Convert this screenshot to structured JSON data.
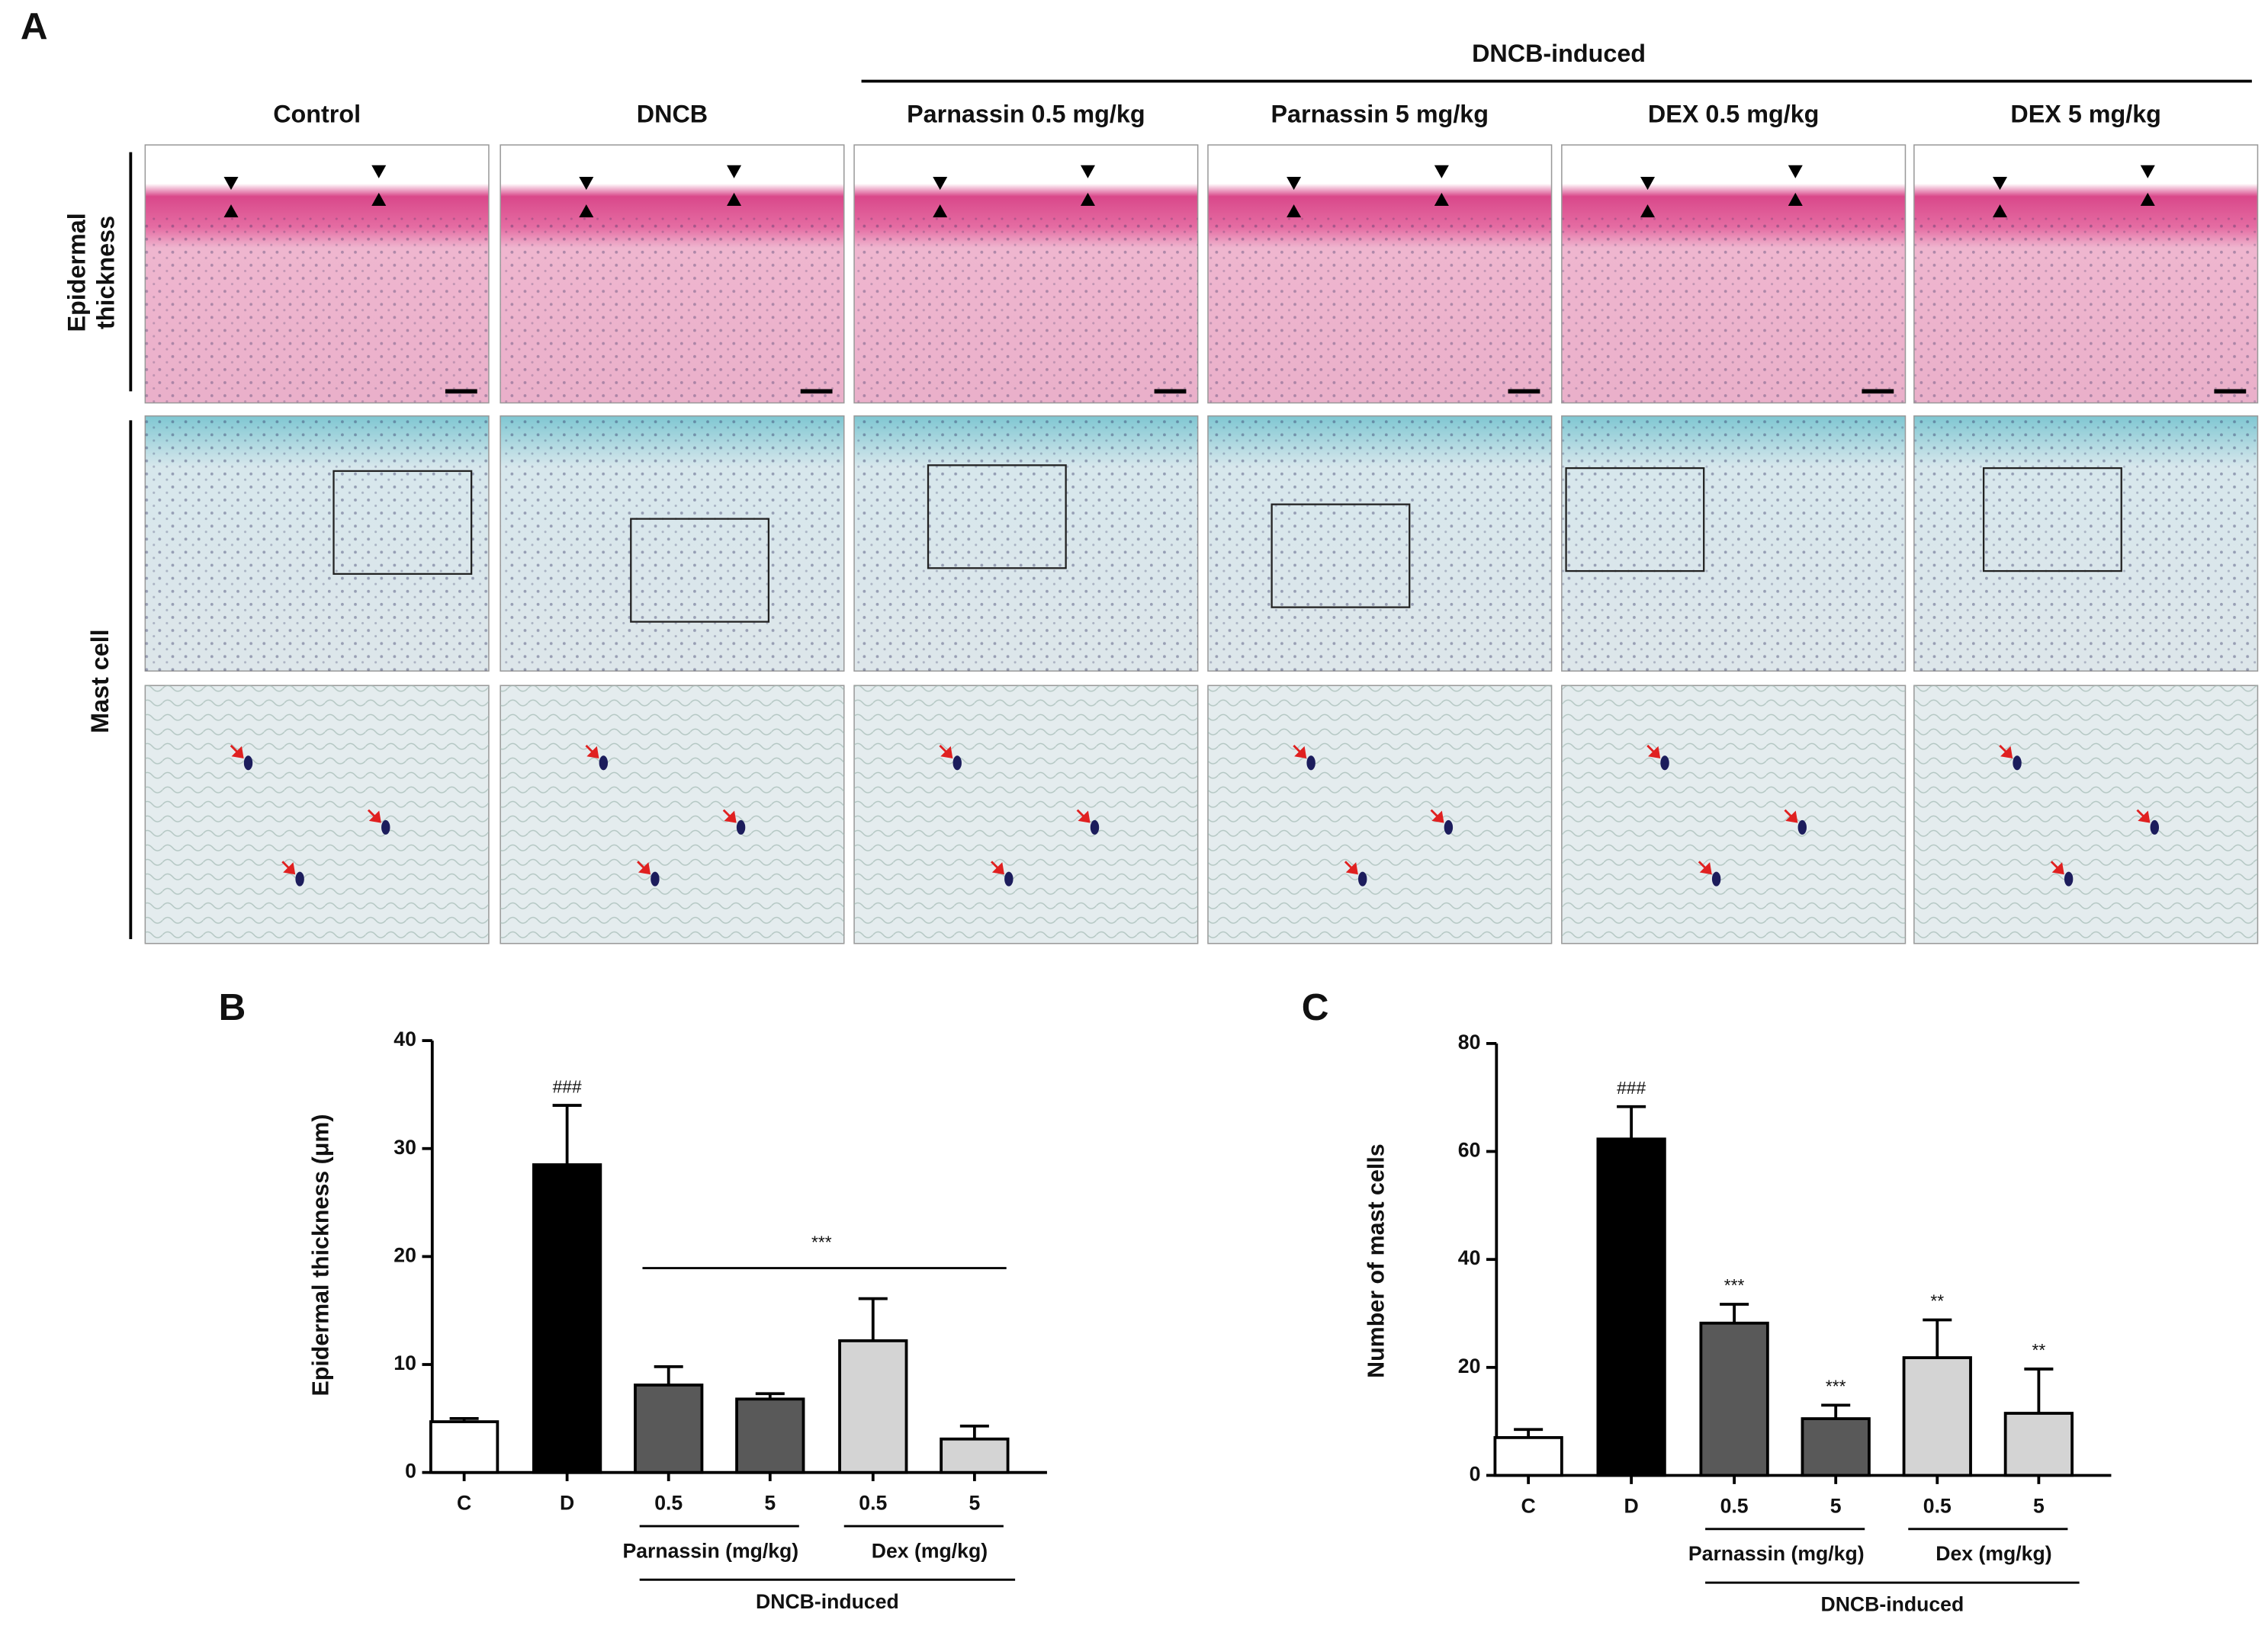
{
  "panel_a": {
    "label": "A",
    "group_label": "DNCB-induced",
    "columns": [
      "Control",
      "DNCB",
      "Parnassin 0.5 mg/kg",
      "Parnassin 5 mg/kg",
      "DEX 0.5 mg/kg",
      "DEX 5 mg/kg"
    ],
    "rows": [
      {
        "lines": [
          "Epidermal",
          "thickness"
        ]
      },
      {
        "lines": [
          "Mast cell"
        ]
      }
    ]
  },
  "chart_data": [
    {
      "type": "bar",
      "panel_label": "B",
      "y_label": "Epidermal thickness (μm)",
      "categories": [
        "C",
        "D",
        "0.5",
        "5",
        "0.5",
        "5"
      ],
      "values": [
        4.7,
        28.5,
        8.1,
        6.8,
        12.2,
        3.1
      ],
      "errors": [
        0.3,
        5.5,
        1.7,
        0.5,
        3.9,
        1.2
      ],
      "colors": [
        "#ffffff",
        "#000000",
        "#595959",
        "#595959",
        "#d4d4d4",
        "#d4d4d4"
      ],
      "significance": [
        null,
        "###",
        null,
        null,
        null,
        null
      ],
      "bracket_label": "***",
      "groups": [
        "Parnassin (mg/kg)",
        "Dex (mg/kg)"
      ],
      "group_caption": "DNCB-induced",
      "ylim": [
        0,
        40
      ],
      "yticks": [
        0,
        10,
        20,
        30,
        40
      ]
    },
    {
      "type": "bar",
      "panel_label": "C",
      "y_label": "Number of mast cells",
      "categories": [
        "C",
        "D",
        "0.5",
        "5",
        "0.5",
        "5"
      ],
      "values": [
        7.0,
        62.3,
        28.2,
        10.5,
        21.8,
        11.5
      ],
      "errors": [
        1.5,
        6.0,
        3.5,
        2.5,
        7.0,
        8.2
      ],
      "colors": [
        "#ffffff",
        "#000000",
        "#595959",
        "#595959",
        "#d4d4d4",
        "#d4d4d4"
      ],
      "significance": [
        null,
        "###",
        "***",
        "***",
        "**",
        "**"
      ],
      "groups": [
        "Parnassin (mg/kg)",
        "Dex (mg/kg)"
      ],
      "group_caption": "DNCB-induced",
      "ylim": [
        0,
        80
      ],
      "yticks": [
        0,
        20,
        40,
        60,
        80
      ]
    }
  ]
}
